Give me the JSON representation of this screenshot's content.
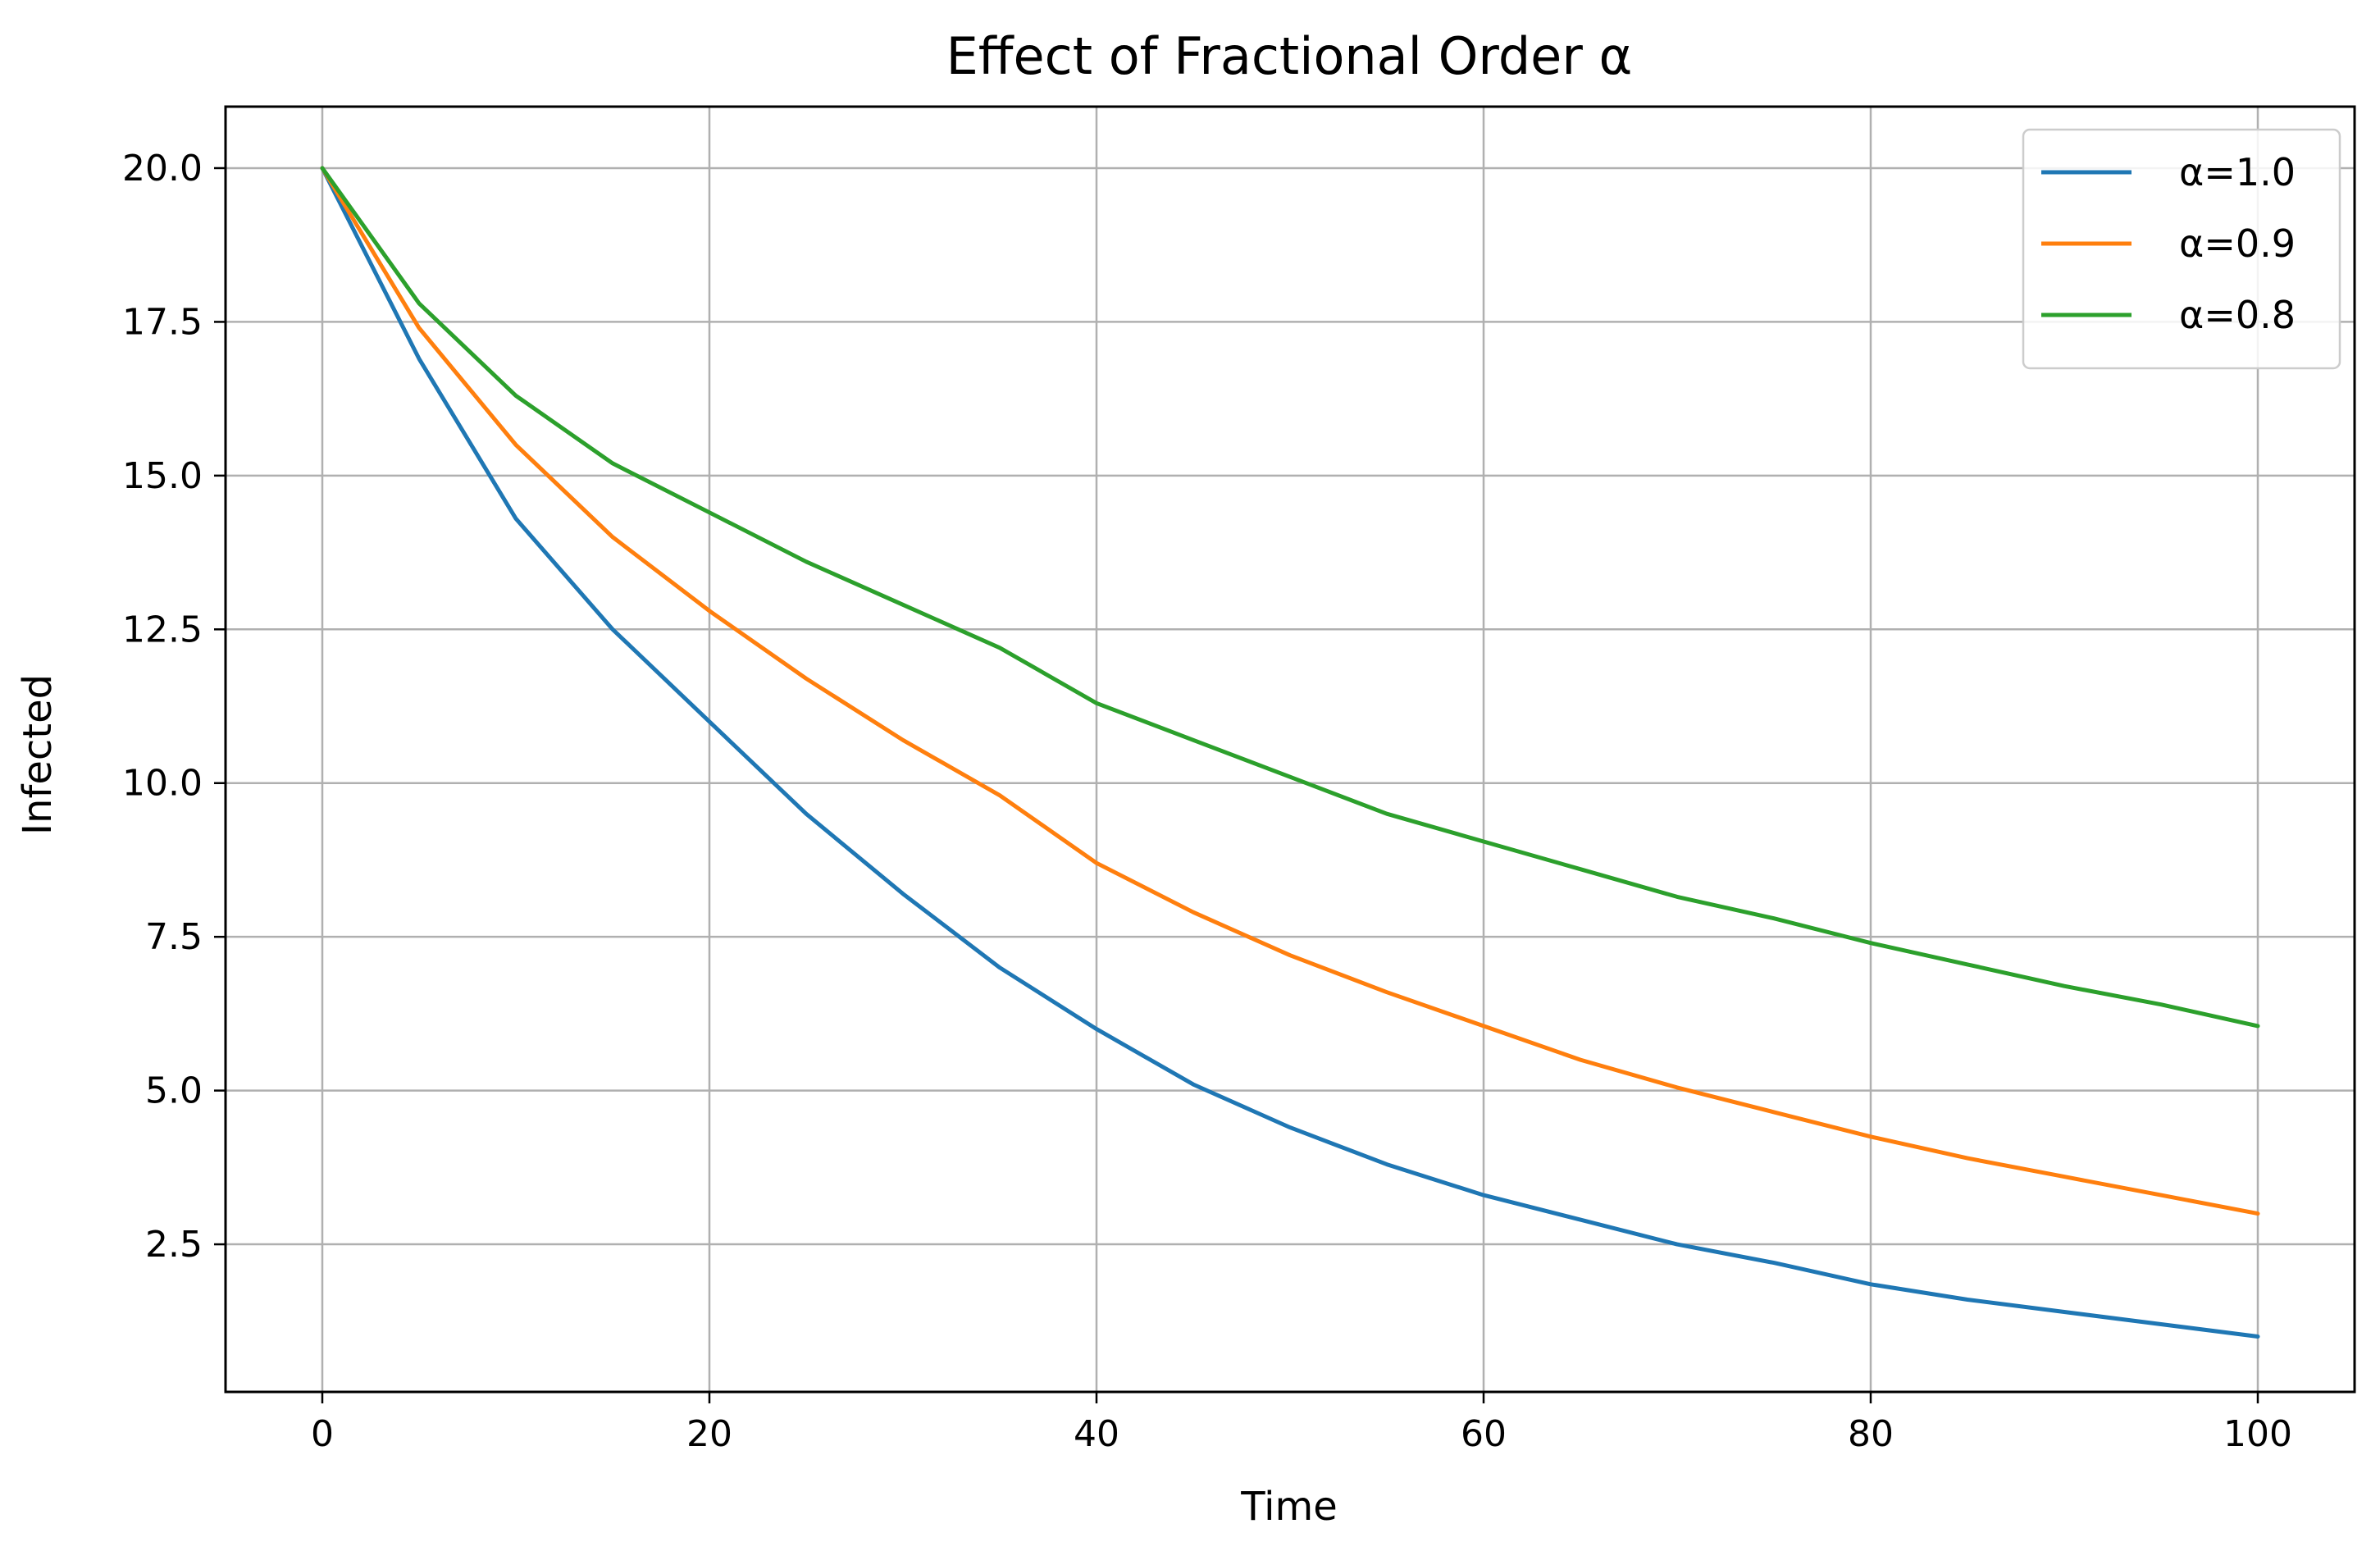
{
  "chart_data": {
    "type": "line",
    "title": "Effect of Fractional Order α",
    "xlabel": "Time",
    "ylabel": "Infected",
    "xlim": [
      -5,
      105
    ],
    "ylim": [
      0.1,
      21.0
    ],
    "xticks": [
      0,
      20,
      40,
      60,
      80,
      100
    ],
    "xtick_labels": [
      "0",
      "20",
      "40",
      "60",
      "80",
      "100"
    ],
    "yticks": [
      2.5,
      5.0,
      7.5,
      10.0,
      12.5,
      15.0,
      17.5,
      20.0
    ],
    "ytick_labels": [
      "2.5",
      "5.0",
      "7.5",
      "10.0",
      "12.5",
      "15.0",
      "17.5",
      "20.0"
    ],
    "grid": true,
    "legend_position": "top-right",
    "x": [
      0,
      5,
      10,
      15,
      20,
      25,
      30,
      35,
      40,
      45,
      50,
      55,
      60,
      65,
      70,
      75,
      80,
      85,
      90,
      95,
      100
    ],
    "series": [
      {
        "name": "α=1.0",
        "color": "#1f77b4",
        "values": [
          20.0,
          16.9,
          14.3,
          12.5,
          11.0,
          9.5,
          8.2,
          7.0,
          6.0,
          5.1,
          4.4,
          3.8,
          3.3,
          2.9,
          2.5,
          2.2,
          1.85,
          1.6,
          1.4,
          1.2,
          1.0
        ]
      },
      {
        "name": "α=0.9",
        "color": "#ff7f0e",
        "values": [
          20.0,
          17.4,
          15.5,
          14.0,
          12.8,
          11.7,
          10.7,
          9.8,
          8.7,
          7.9,
          7.2,
          6.6,
          6.05,
          5.5,
          5.05,
          4.65,
          4.25,
          3.9,
          3.6,
          3.3,
          3.0
        ]
      },
      {
        "name": "α=0.8",
        "color": "#2ca02c",
        "values": [
          20.0,
          17.8,
          16.3,
          15.2,
          14.4,
          13.6,
          12.9,
          12.2,
          11.3,
          10.7,
          10.1,
          9.5,
          9.05,
          8.6,
          8.15,
          7.8,
          7.4,
          7.05,
          6.7,
          6.4,
          6.05
        ]
      }
    ]
  }
}
